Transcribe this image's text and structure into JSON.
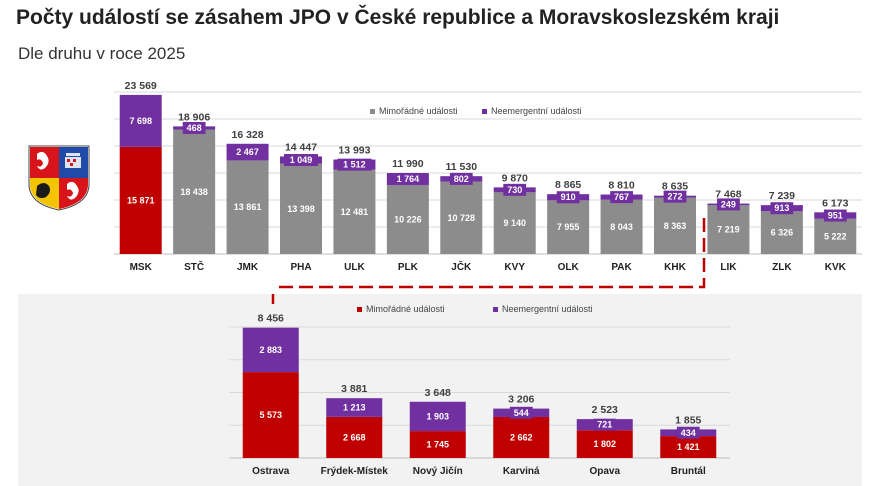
{
  "title": "Počty událostí se zásahem JPO v České republice a Moravskoslezském kraji",
  "subtitle": "Dle druhu v roce 2025",
  "colors": {
    "grey": "#8c8c8c",
    "purple": "#7030a0",
    "red": "#c00000",
    "dashed_connector": "#c00000",
    "lower_background": "#f2f2f2"
  },
  "chart_data": [
    {
      "type": "bar",
      "stacked": true,
      "legend_position": "top",
      "categories": [
        "MSK",
        "STČ",
        "JMK",
        "PHA",
        "ULK",
        "PLK",
        "JČK",
        "KVY",
        "OLK",
        "PAK",
        "KHK",
        "LIK",
        "ZLK",
        "KVK"
      ],
      "series": [
        {
          "name": "Mimořádné události",
          "values": [
            15871,
            18438,
            13861,
            13398,
            12481,
            10226,
            10728,
            9140,
            7955,
            8043,
            8363,
            7219,
            6326,
            5222
          ],
          "value_labels": [
            "15 871",
            "18 438",
            "13 861",
            "13 398",
            "12 481",
            "10 226",
            "10 728",
            "9 140",
            "7 955",
            "8 043",
            "8 363",
            "7 219",
            "6 326",
            "5 222"
          ]
        },
        {
          "name": "Neemergentní události",
          "values": [
            7698,
            468,
            2467,
            1049,
            1512,
            1764,
            802,
            730,
            910,
            767,
            272,
            249,
            913,
            951
          ],
          "value_labels": [
            "7 698",
            "468",
            "2 467",
            "1 049",
            "1 512",
            "1 764",
            "802",
            "730",
            "910",
            "767",
            "272",
            "249",
            "913",
            "951"
          ]
        }
      ],
      "totals": [
        "23 569",
        "18 906",
        "16 328",
        "14 447",
        "13 993",
        "11 990",
        "11 530",
        "9 870",
        "8 865",
        "8 810",
        "8 635",
        "7 468",
        "7 239",
        "6 173"
      ],
      "highlight_category": "MSK",
      "ylim": [
        0,
        24000
      ]
    },
    {
      "type": "bar",
      "stacked": true,
      "legend_position": "top",
      "categories": [
        "Ostrava",
        "Frýdek-Místek",
        "Nový Jičín",
        "Karviná",
        "Opava",
        "Bruntál"
      ],
      "series": [
        {
          "name": "Mimořádné události",
          "values": [
            5573,
            2668,
            1745,
            2662,
            1802,
            1421
          ],
          "value_labels": [
            "5 573",
            "2 668",
            "1 745",
            "2 662",
            "1 802",
            "1 421"
          ]
        },
        {
          "name": "Neemergentní události",
          "values": [
            2883,
            1213,
            1903,
            544,
            721,
            434
          ],
          "value_labels": [
            "2 883",
            "1 213",
            "1 903",
            "544",
            "721",
            "434"
          ]
        }
      ],
      "totals": [
        "8 456",
        "3 881",
        "3 648",
        "3 206",
        "2 523",
        "1 855"
      ],
      "ylim": [
        0,
        8500
      ]
    }
  ],
  "emblems": {
    "cr": "czech-republic-coat-of-arms",
    "msk": "moravian-silesian-region-coat-of-arms"
  }
}
